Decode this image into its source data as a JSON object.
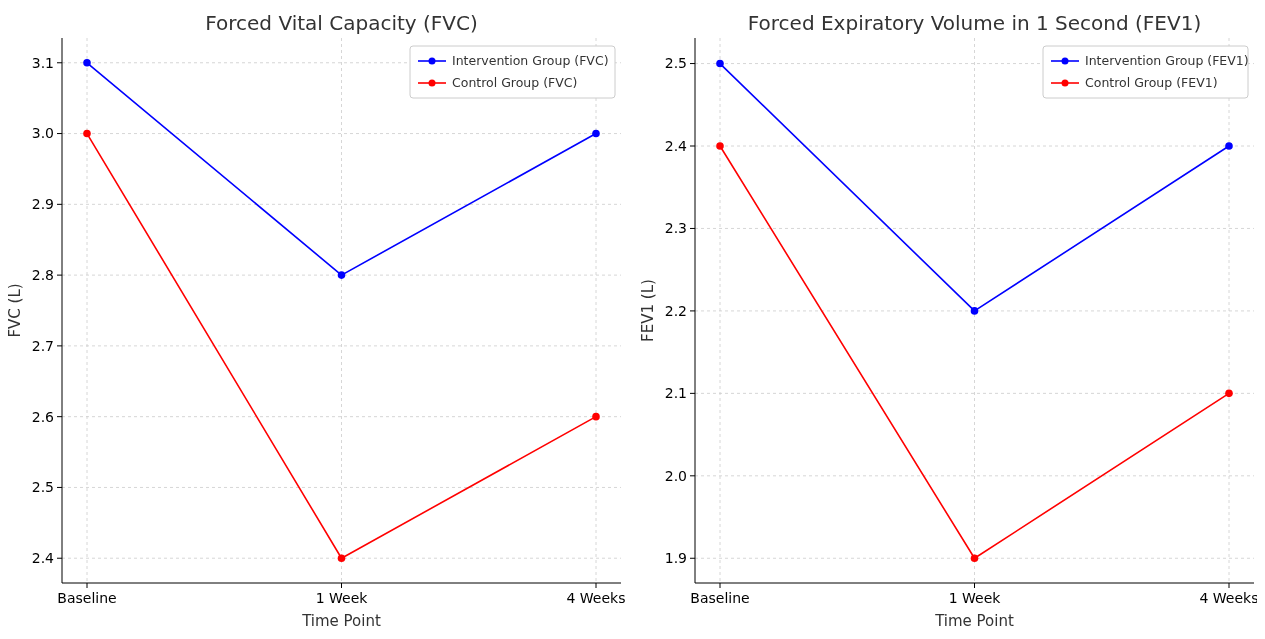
{
  "chart_data": [
    {
      "type": "line",
      "title": "Forced Vital Capacity (FVC)",
      "xlabel": "Time Point",
      "ylabel": "FVC (L)",
      "categories": [
        "Baseline",
        "1 Week",
        "4 Weeks"
      ],
      "series": [
        {
          "name": "Intervention Group (FVC)",
          "color": "#0000ff",
          "values": [
            3.1,
            2.8,
            3.0
          ]
        },
        {
          "name": "Control Group (FVC)",
          "color": "#ff0000",
          "values": [
            3.0,
            2.4,
            2.6
          ]
        }
      ],
      "ylim": [
        2.365,
        3.135
      ],
      "yticks": [
        2.4,
        2.5,
        2.6,
        2.7,
        2.8,
        2.9,
        {
          "value": 3,
          "label": "3.0"
        },
        3.1
      ],
      "grid": true,
      "legend": "top right",
      "marker": "circle",
      "line_style": "solid"
    },
    {
      "type": "line",
      "title": "Forced Expiratory Volume in 1 Second (FEV1)",
      "xlabel": "Time Point",
      "ylabel": "FEV1 (L)",
      "categories": [
        "Baseline",
        "1 Week",
        "4 Weeks"
      ],
      "series": [
        {
          "name": "Intervention Group (FEV1)",
          "color": "#0000ff",
          "values": [
            2.5,
            2.2,
            2.4
          ]
        },
        {
          "name": "Control Group (FEV1)",
          "color": "#ff0000",
          "values": [
            2.4,
            1.9,
            2.1
          ]
        }
      ],
      "ylim": [
        1.87,
        2.531
      ],
      "yticks": [
        1.9,
        {
          "value": 2,
          "label": "2.0"
        },
        2.1,
        2.2,
        2.3,
        2.4,
        2.5
      ],
      "grid": true,
      "legend": "top right",
      "marker": "circle",
      "line_style": "solid"
    }
  ]
}
